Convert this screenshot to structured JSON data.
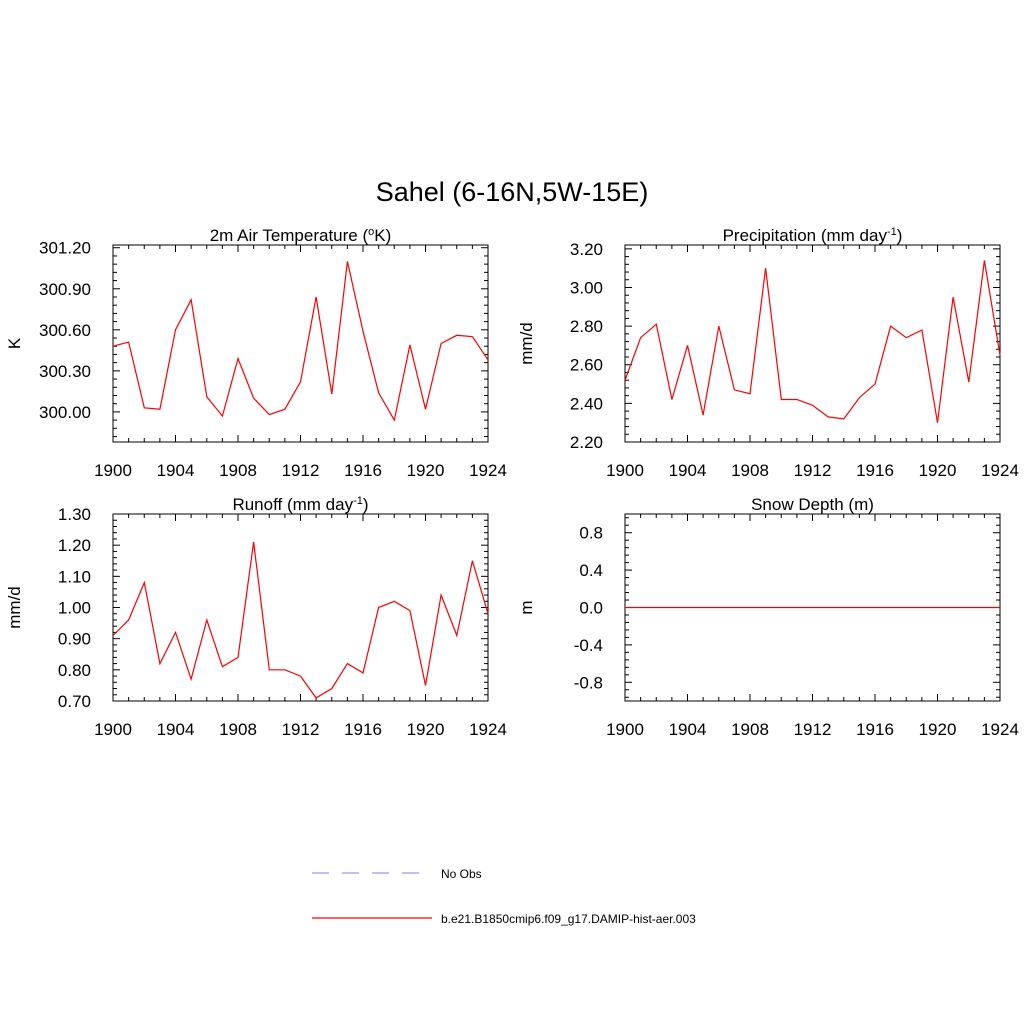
{
  "title": "Sahel (6-16N,5W-15E)",
  "colors": {
    "model": "#ff0000",
    "obs": "#9999ff",
    "axis": "#000000"
  },
  "legend": {
    "entries": [
      {
        "label": "No Obs",
        "style": "dashed",
        "color": "#9999ff"
      },
      {
        "label": "b.e21.B1850cmip6.f09_g17.DAMIP-hist-aer.003",
        "style": "solid",
        "color": "#ff0000"
      }
    ]
  },
  "chart_data": [
    {
      "type": "line",
      "title_parts": {
        "pre": "2m Air Temperature (",
        "sup": "o",
        "post": "K)"
      },
      "ylabel": "K",
      "xlim": [
        1900,
        1924
      ],
      "ylim": [
        299.78,
        301.22
      ],
      "xticks": [
        "1900",
        "1904",
        "1908",
        "1912",
        "1916",
        "1920",
        "1924"
      ],
      "yticks": [
        "300.00",
        "300.30",
        "300.60",
        "300.90",
        "301.20"
      ],
      "grid": false,
      "x": [
        1900,
        1901,
        1902,
        1903,
        1904,
        1905,
        1906,
        1907,
        1908,
        1909,
        1910,
        1911,
        1912,
        1913,
        1914,
        1915,
        1916,
        1917,
        1918,
        1919,
        1920,
        1921,
        1922,
        1923,
        1924
      ],
      "series": [
        {
          "values": [
            300.48,
            300.51,
            300.03,
            300.02,
            300.6,
            300.82,
            300.11,
            299.97,
            300.39,
            300.1,
            299.98,
            300.02,
            300.22,
            300.84,
            300.13,
            301.1,
            300.59,
            300.14,
            299.94,
            300.49,
            300.02,
            300.5,
            300.56,
            300.55,
            300.38
          ]
        }
      ]
    },
    {
      "type": "line",
      "title_parts": {
        "pre": "Precipitation (mm day",
        "sup": "-1",
        "post": ")"
      },
      "ylabel": "mm/d",
      "xlim": [
        1900,
        1924
      ],
      "ylim": [
        2.2,
        3.22
      ],
      "xticks": [
        "1900",
        "1904",
        "1908",
        "1912",
        "1916",
        "1920",
        "1924"
      ],
      "yticks": [
        "2.20",
        "2.40",
        "2.60",
        "2.80",
        "3.00",
        "3.20"
      ],
      "grid": false,
      "x": [
        1900,
        1901,
        1902,
        1903,
        1904,
        1905,
        1906,
        1907,
        1908,
        1909,
        1910,
        1911,
        1912,
        1913,
        1914,
        1915,
        1916,
        1917,
        1918,
        1919,
        1920,
        1921,
        1922,
        1923,
        1924
      ],
      "series": [
        {
          "values": [
            2.52,
            2.74,
            2.81,
            2.42,
            2.7,
            2.34,
            2.8,
            2.47,
            2.45,
            3.1,
            2.42,
            2.42,
            2.39,
            2.33,
            2.32,
            2.43,
            2.5,
            2.8,
            2.74,
            2.78,
            2.3,
            2.95,
            2.51,
            3.14,
            2.65
          ]
        }
      ]
    },
    {
      "type": "line",
      "title_parts": {
        "pre": "Runoff (mm day",
        "sup": "-1",
        "post": ")"
      },
      "ylabel": "mm/d",
      "xlim": [
        1900,
        1924
      ],
      "ylim": [
        0.7,
        1.3
      ],
      "xticks": [
        "1900",
        "1904",
        "1908",
        "1912",
        "1916",
        "1920",
        "1924"
      ],
      "yticks": [
        "0.70",
        "0.80",
        "0.90",
        "1.00",
        "1.10",
        "1.20",
        "1.30"
      ],
      "grid": false,
      "x": [
        1900,
        1901,
        1902,
        1903,
        1904,
        1905,
        1906,
        1907,
        1908,
        1909,
        1910,
        1911,
        1912,
        1913,
        1914,
        1915,
        1916,
        1917,
        1918,
        1919,
        1920,
        1921,
        1922,
        1923,
        1924
      ],
      "series": [
        {
          "values": [
            0.91,
            0.96,
            1.08,
            0.82,
            0.92,
            0.77,
            0.96,
            0.81,
            0.84,
            1.21,
            0.8,
            0.8,
            0.78,
            0.71,
            0.74,
            0.82,
            0.79,
            1.0,
            1.02,
            0.99,
            0.75,
            1.04,
            0.91,
            1.15,
            0.98
          ]
        }
      ]
    },
    {
      "type": "line",
      "title_parts": {
        "pre": "Snow Depth (m)",
        "sup": "",
        "post": ""
      },
      "ylabel": "m",
      "xlim": [
        1900,
        1924
      ],
      "ylim": [
        -1.0,
        1.0
      ],
      "xticks": [
        "1900",
        "1904",
        "1908",
        "1912",
        "1916",
        "1920",
        "1924"
      ],
      "yticks": [
        "-0.8",
        "-0.4",
        "0.0",
        "0.4",
        "0.8"
      ],
      "grid": false,
      "x": [
        1900,
        1901,
        1902,
        1903,
        1904,
        1905,
        1906,
        1907,
        1908,
        1909,
        1910,
        1911,
        1912,
        1913,
        1914,
        1915,
        1916,
        1917,
        1918,
        1919,
        1920,
        1921,
        1922,
        1923,
        1924
      ],
      "series": [
        {
          "values": [
            0,
            0,
            0,
            0,
            0,
            0,
            0,
            0,
            0,
            0,
            0,
            0,
            0,
            0,
            0,
            0,
            0,
            0,
            0,
            0,
            0,
            0,
            0,
            0,
            0
          ]
        }
      ]
    }
  ]
}
